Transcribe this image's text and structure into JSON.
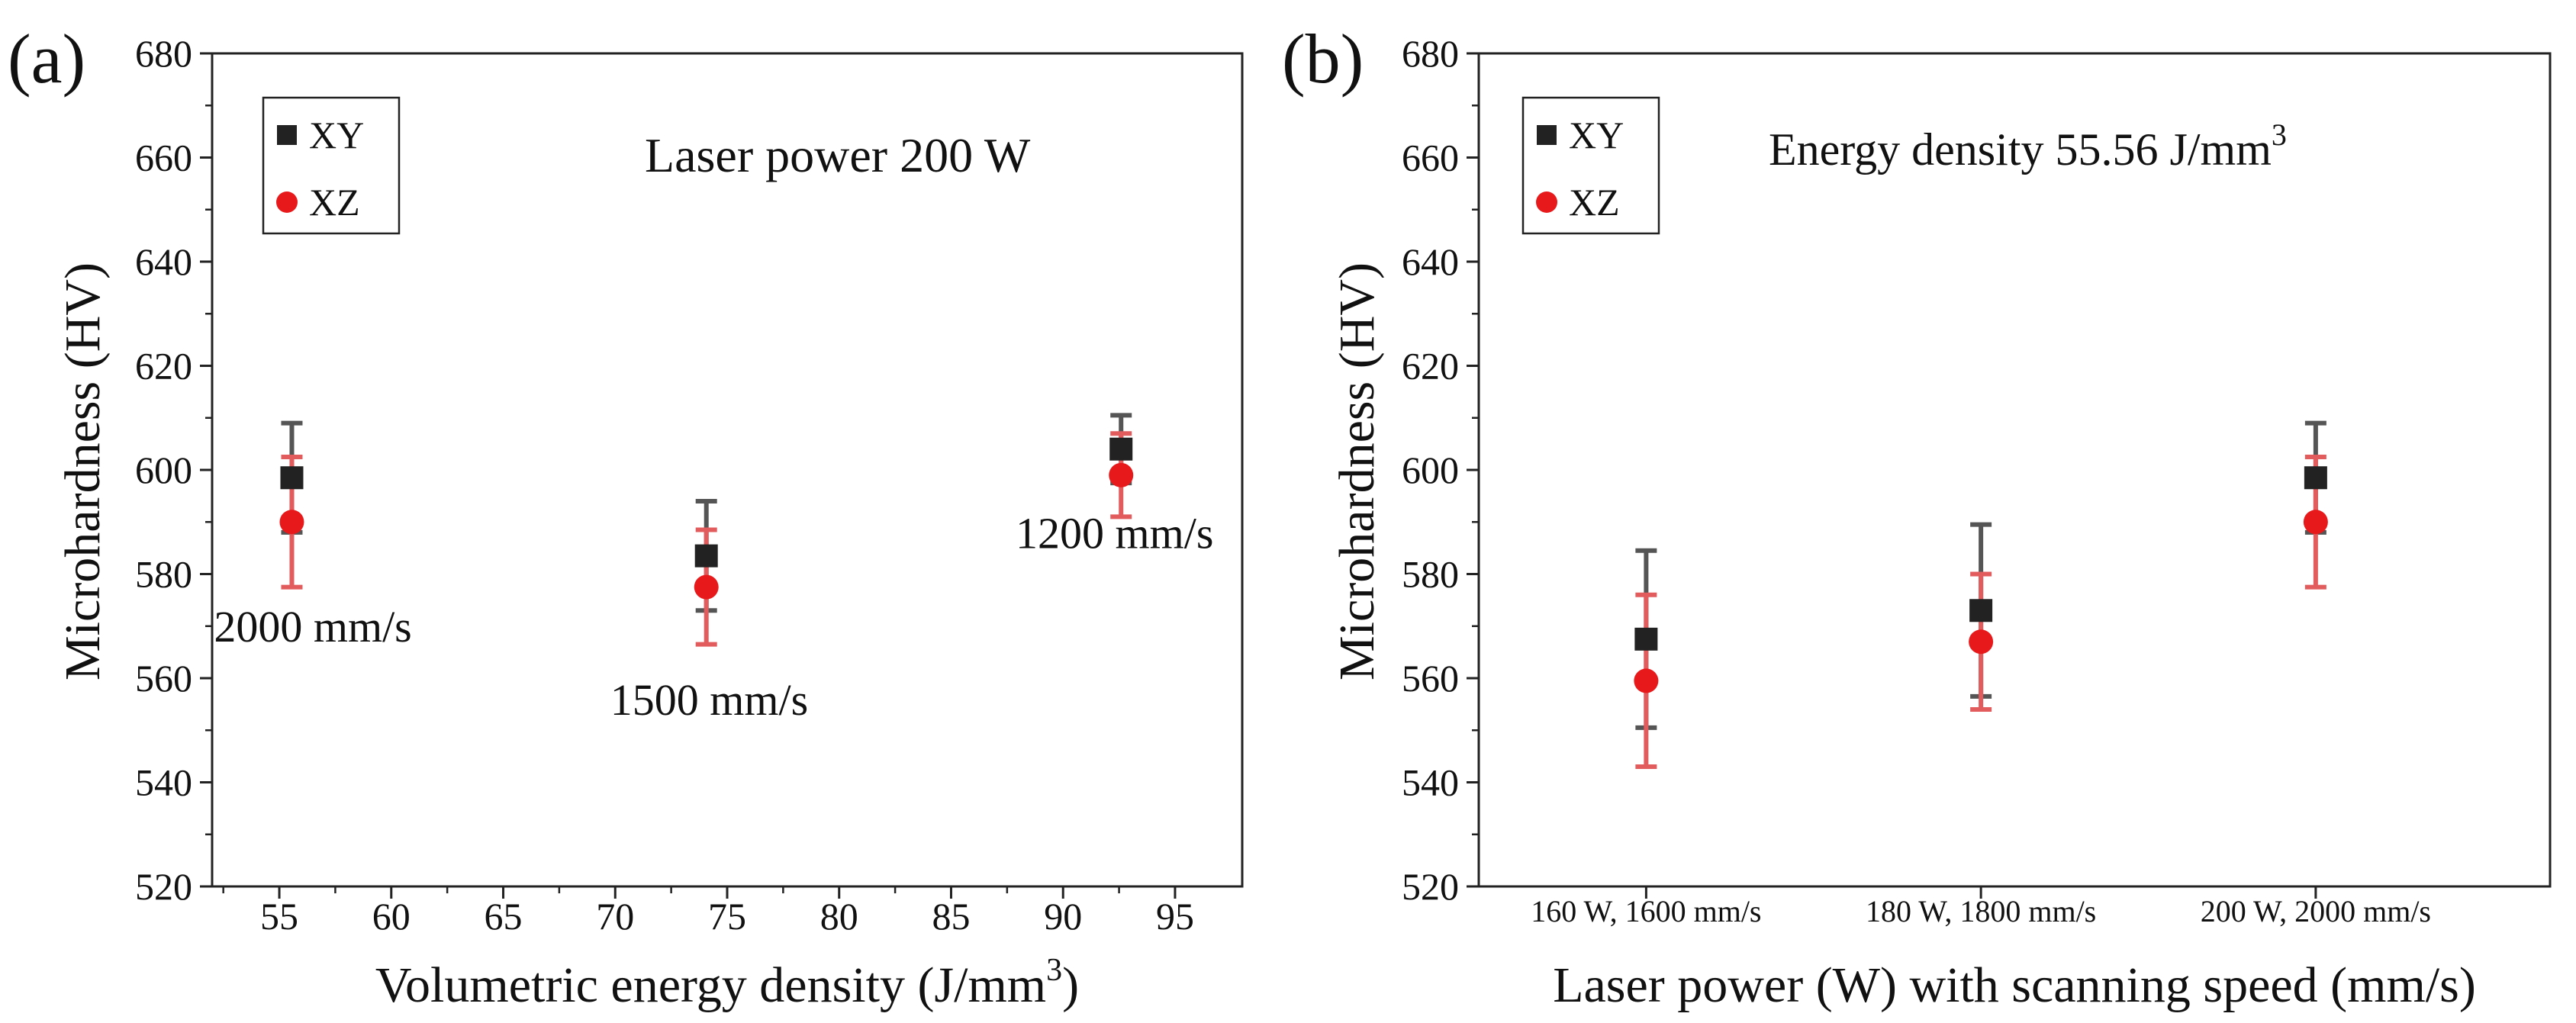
{
  "chart_data": [
    {
      "id": "a",
      "type": "scatter",
      "panel_label": "(a)",
      "title": "Laser power 200 W",
      "xlabel": "Volumetric energy density (J/mm",
      "xlabel_sup": "3",
      "xlabel_end": ")",
      "ylabel": "Microhardness (HV)",
      "xlim": [
        52,
        98
      ],
      "ylim": [
        520,
        680
      ],
      "xticks": [
        55,
        60,
        65,
        70,
        75,
        80,
        85,
        90,
        95
      ],
      "xtick_labels": [
        "55",
        "60",
        "65",
        "70",
        "75",
        "80",
        "85",
        "90",
        "95"
      ],
      "yticks": [
        520,
        540,
        560,
        580,
        600,
        620,
        640,
        660,
        680
      ],
      "ytick_labels": [
        "520",
        "540",
        "560",
        "580",
        "600",
        "620",
        "640",
        "660",
        "680"
      ],
      "legend": {
        "position": "top-left",
        "entries": [
          "XY",
          "XZ"
        ]
      },
      "series": [
        {
          "name": "XY",
          "marker": "square",
          "color": "#222222",
          "error_color": "#555555",
          "x": [
            55.56,
            74.07,
            92.59
          ],
          "y": [
            598.5,
            583.5,
            604.0
          ],
          "err": [
            10.5,
            10.5,
            6.5
          ]
        },
        {
          "name": "XZ",
          "marker": "circle",
          "color": "#e8191b",
          "error_color": "#e25c5e",
          "x": [
            55.56,
            74.07,
            92.59
          ],
          "y": [
            590.0,
            577.5,
            599.0
          ],
          "err": [
            12.5,
            11.0,
            8.0
          ]
        }
      ],
      "annotations": [
        {
          "text": "2000 mm/s",
          "x": 56.5,
          "y": 567
        },
        {
          "text": "1500 mm/s",
          "x": 74.2,
          "y": 553
        },
        {
          "text": "1200 mm/s",
          "x": 92.3,
          "y": 585
        }
      ]
    },
    {
      "id": "b",
      "type": "scatter",
      "panel_label": "(b)",
      "title": "Energy density 55.56 J/mm",
      "title_sup": "3",
      "xlabel": "Laser power (W) with scanning speed (mm/s)",
      "ylabel": "Microhardness (HV)",
      "xlim": [
        0.5,
        3.7
      ],
      "ylim": [
        520,
        680
      ],
      "xticks": [
        1,
        2,
        3
      ],
      "xtick_labels": [
        "160 W, 1600 mm/s",
        "180 W, 1800 mm/s",
        "200 W, 2000 mm/s"
      ],
      "yticks": [
        520,
        540,
        560,
        580,
        600,
        620,
        640,
        660,
        680
      ],
      "ytick_labels": [
        "520",
        "540",
        "560",
        "580",
        "600",
        "620",
        "640",
        "660",
        "680"
      ],
      "legend": {
        "position": "top-left",
        "entries": [
          "XY",
          "XZ"
        ]
      },
      "series": [
        {
          "name": "XY",
          "marker": "square",
          "color": "#222222",
          "error_color": "#555555",
          "x": [
            1,
            2,
            3
          ],
          "y": [
            567.5,
            573.0,
            598.5
          ],
          "err": [
            17.0,
            16.5,
            10.5
          ]
        },
        {
          "name": "XZ",
          "marker": "circle",
          "color": "#e8191b",
          "error_color": "#e25c5e",
          "x": [
            1,
            2,
            3
          ],
          "y": [
            559.5,
            567.0,
            590.0
          ],
          "err": [
            16.5,
            13.0,
            12.5
          ]
        }
      ],
      "annotations": []
    }
  ]
}
